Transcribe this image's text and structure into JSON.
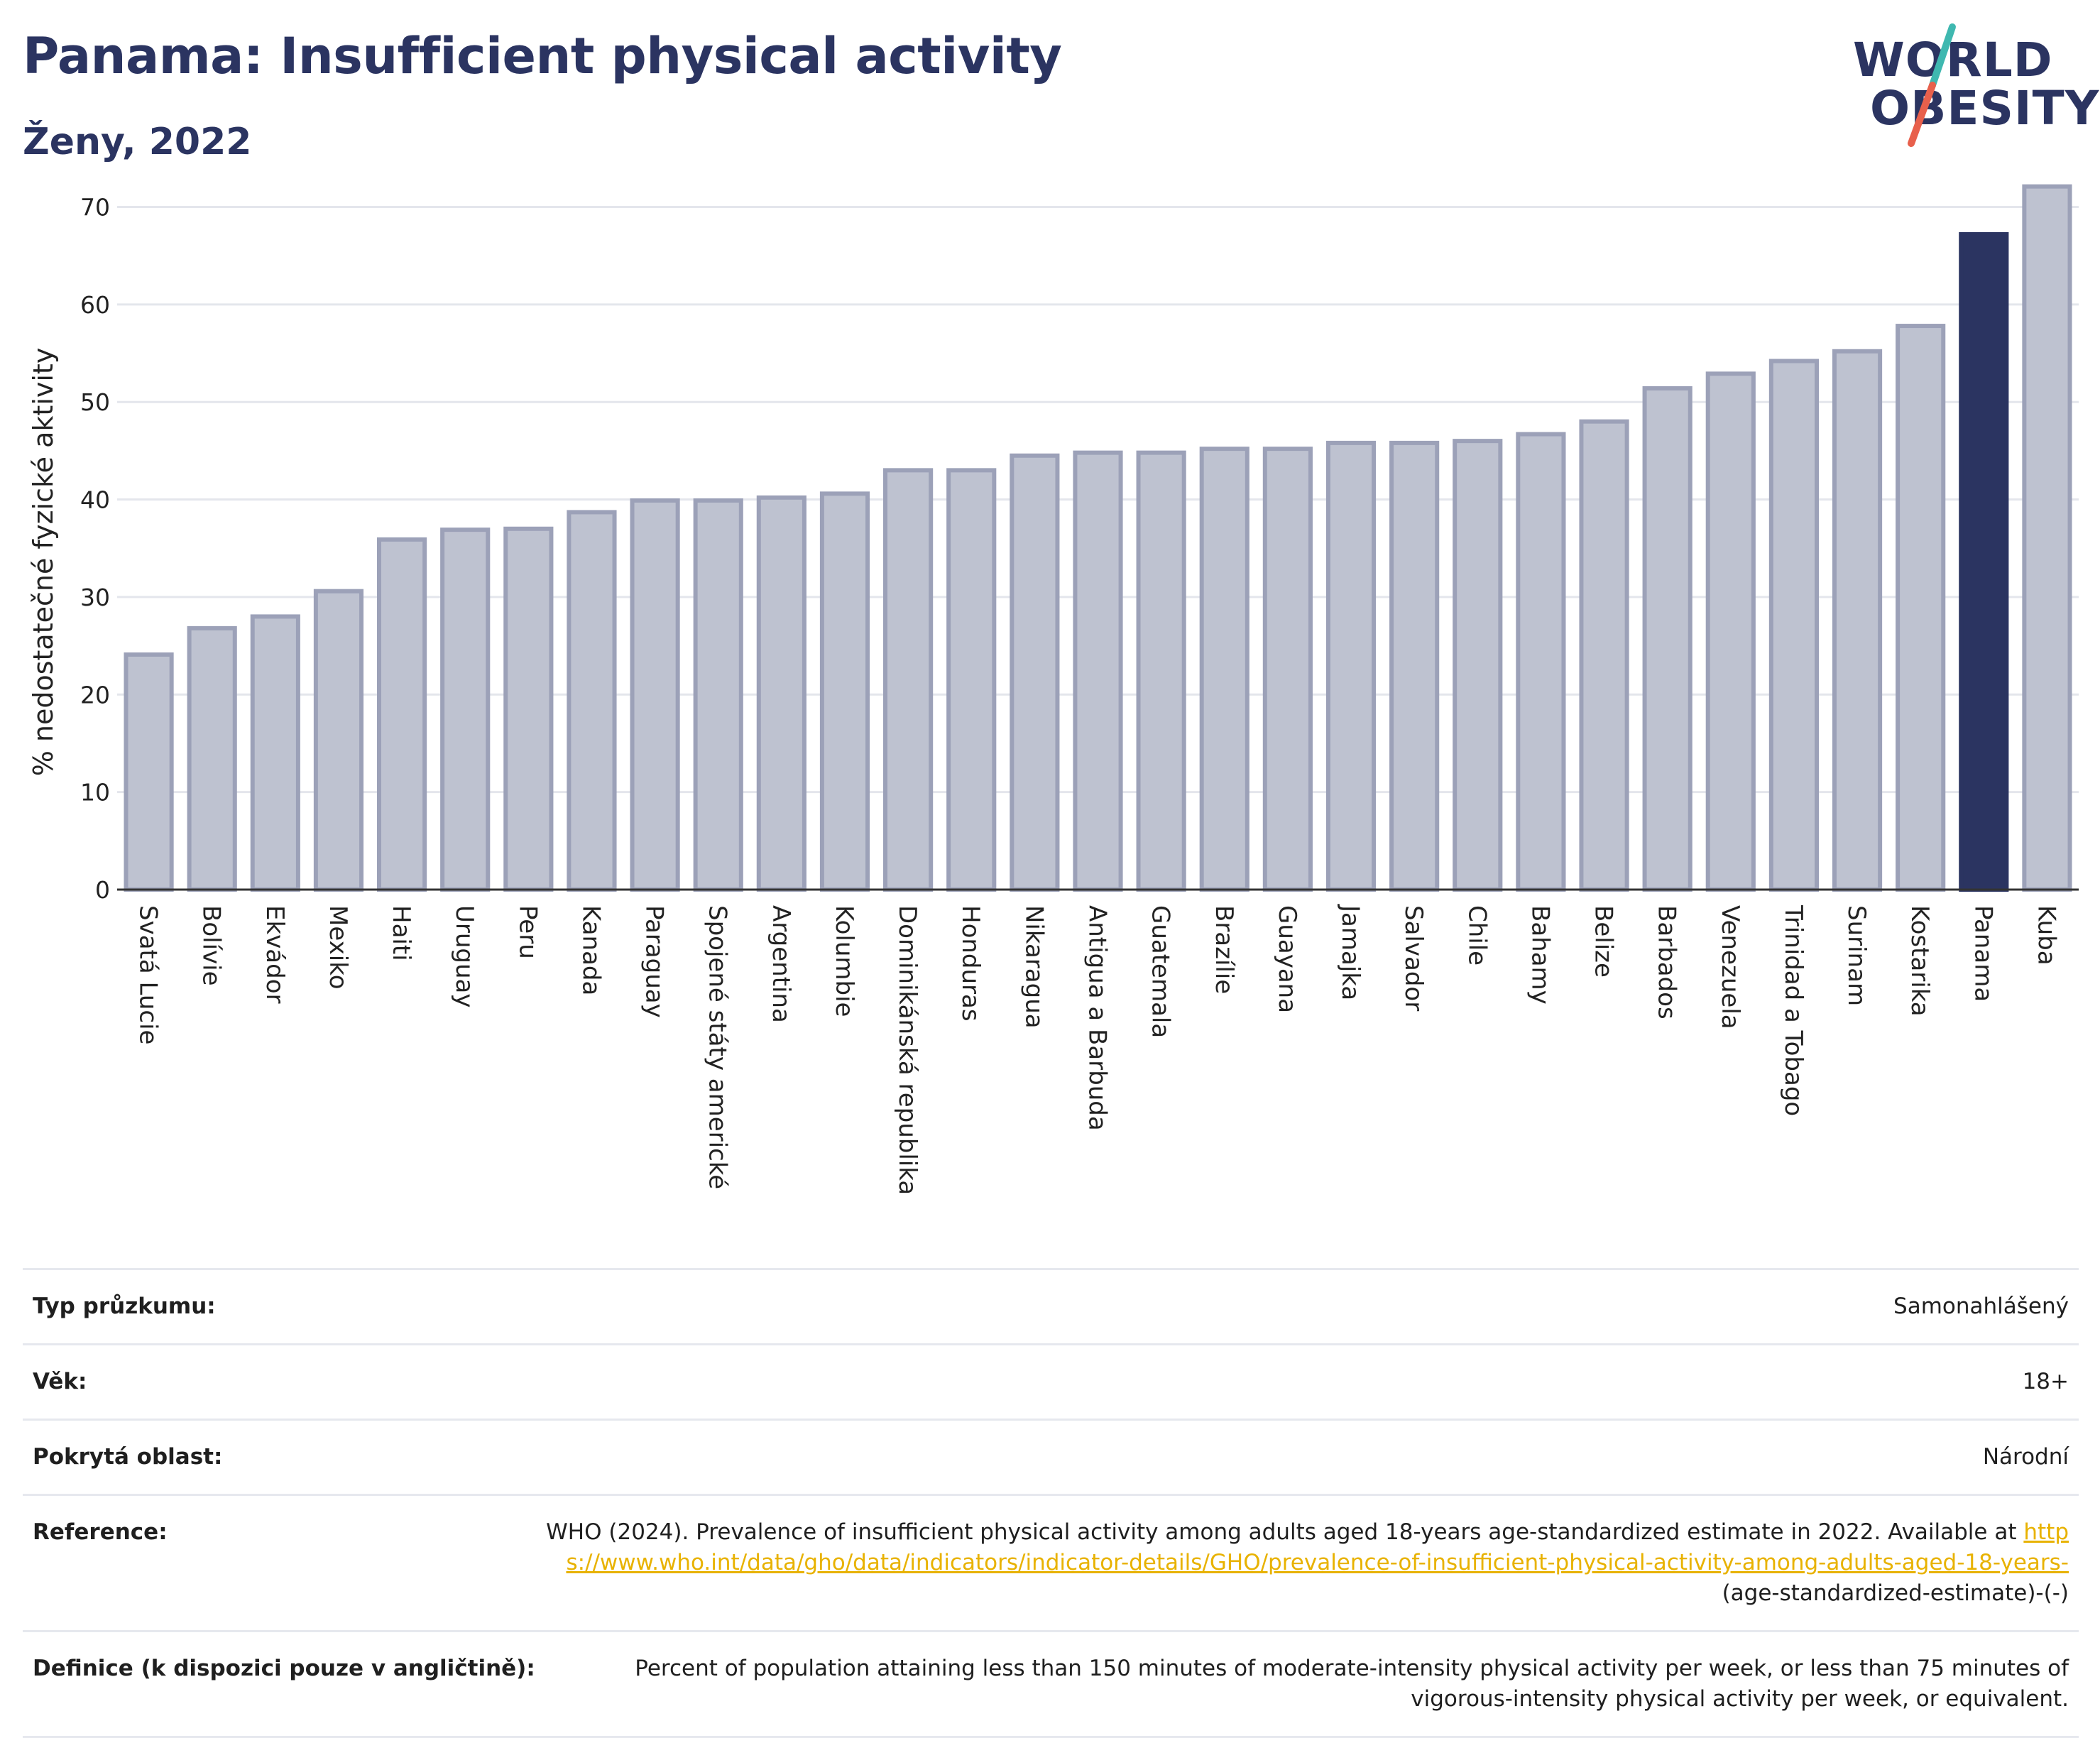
{
  "header": {
    "title": "Panama: Insufficient physical activity",
    "subtitle": "Ženy, 2022"
  },
  "logo": {
    "line1": "WORLD",
    "line2": "OBESITY",
    "colors": {
      "text": "#2b3461",
      "slash_top": "#3fb8b0",
      "slash_bottom": "#e8604c"
    }
  },
  "chart_data": {
    "type": "bar",
    "ylabel": "% nedostatečné fyzické aktivity",
    "xlabel": "",
    "ylim": [
      0,
      72
    ],
    "yticks": [
      0,
      10,
      20,
      30,
      40,
      50,
      60,
      70
    ],
    "grid": true,
    "highlight": "Panama",
    "colors": {
      "bar": "#bec2d0",
      "bar_stroke": "#9ca1b8",
      "highlight": "#2b3461",
      "grid": "#e4e6ec"
    },
    "categories": [
      "Svatá Lucie",
      "Bolívie",
      "Ekvádor",
      "Mexiko",
      "Haiti",
      "Uruguay",
      "Peru",
      "Kanada",
      "Paraguay",
      "Spojené státy americké",
      "Argentina",
      "Kolumbie",
      "Dominikánská republika",
      "Honduras",
      "Nikaragua",
      "Antigua a Barbuda",
      "Guatemala",
      "Brazílie",
      "Guayana",
      "Jamajka",
      "Salvador",
      "Chile",
      "Bahamy",
      "Belize",
      "Barbados",
      "Venezuela",
      "Trinidad a Tobago",
      "Surinam",
      "Kostarika",
      "Panama",
      "Kuba"
    ],
    "values": [
      24.1,
      26.8,
      28.0,
      30.6,
      35.9,
      36.9,
      37.0,
      38.7,
      39.9,
      39.9,
      40.2,
      40.6,
      43.0,
      43.0,
      44.5,
      44.8,
      44.8,
      45.2,
      45.2,
      45.8,
      45.8,
      46.0,
      46.7,
      48.0,
      51.4,
      52.9,
      54.2,
      55.2,
      57.8,
      67.2,
      72.1
    ]
  },
  "info": {
    "rows": [
      {
        "label": "Typ průzkumu:",
        "value": "Samonahlášený"
      },
      {
        "label": "Věk:",
        "value": "18+"
      },
      {
        "label": "Pokrytá oblast:",
        "value": "Národní"
      }
    ],
    "reference": {
      "label": "Reference:",
      "text": "WHO (2024). Prevalence of insufficient physical activity among adults aged 18-years age-standardized estimate in 2022. Available at ",
      "link": "https://www.who.int/data/gho/data/indicators/indicator-details/GHO/prevalence-of-insufficient-physical-activity-among-adults-aged-18-years-",
      "suffix": "(age-standardized-estimate)-(-)"
    },
    "definition": {
      "label": "Definice (k dispozici pouze v angličtině):",
      "value": "Percent of population attaining less than 150 minutes of moderate-intensity physical activity per week, or less than 75 minutes of vigorous-intensity physical activity per week, or equivalent."
    }
  }
}
